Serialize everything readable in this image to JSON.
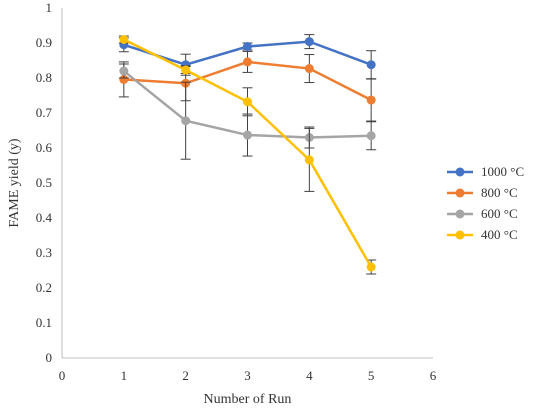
{
  "chart_data": {
    "type": "line",
    "title": "",
    "xlabel": "Number of Run",
    "ylabel": "FAME yield (y)",
    "xlim": [
      0,
      6
    ],
    "ylim": [
      0,
      1
    ],
    "x_ticks": [
      "0",
      "1",
      "2",
      "3",
      "4",
      "5",
      "6"
    ],
    "y_ticks": [
      "0",
      "0.1",
      "0.2",
      "0.3",
      "0.4",
      "0.5",
      "0.6",
      "0.7",
      "0.8",
      "0.9",
      "1"
    ],
    "grid": false,
    "legend_position": "right",
    "x": [
      1,
      2,
      3,
      4,
      5
    ],
    "series": [
      {
        "name": "1000 °C",
        "color": "#4472C4",
        "values": [
          0.895,
          0.838,
          0.89,
          0.904,
          0.838
        ],
        "errors": [
          0.02,
          0.03,
          0.01,
          0.02,
          0.04
        ]
      },
      {
        "name": "800 °C",
        "color": "#ED7D31",
        "values": [
          0.796,
          0.785,
          0.846,
          0.827,
          0.737
        ],
        "errors": [
          0.05,
          0.05,
          0.03,
          0.04,
          0.06
        ]
      },
      {
        "name": "600 °C",
        "color": "#A5A5A5",
        "values": [
          0.82,
          0.678,
          0.637,
          0.63,
          0.635
        ],
        "errors": [
          0.02,
          0.11,
          0.06,
          0.03,
          0.04
        ]
      },
      {
        "name": "400 °C",
        "color": "#FFC000",
        "values": [
          0.91,
          0.823,
          0.732,
          0.566,
          0.26
        ],
        "errors": [
          0.01,
          0.01,
          0.04,
          0.09,
          0.02
        ]
      }
    ]
  }
}
